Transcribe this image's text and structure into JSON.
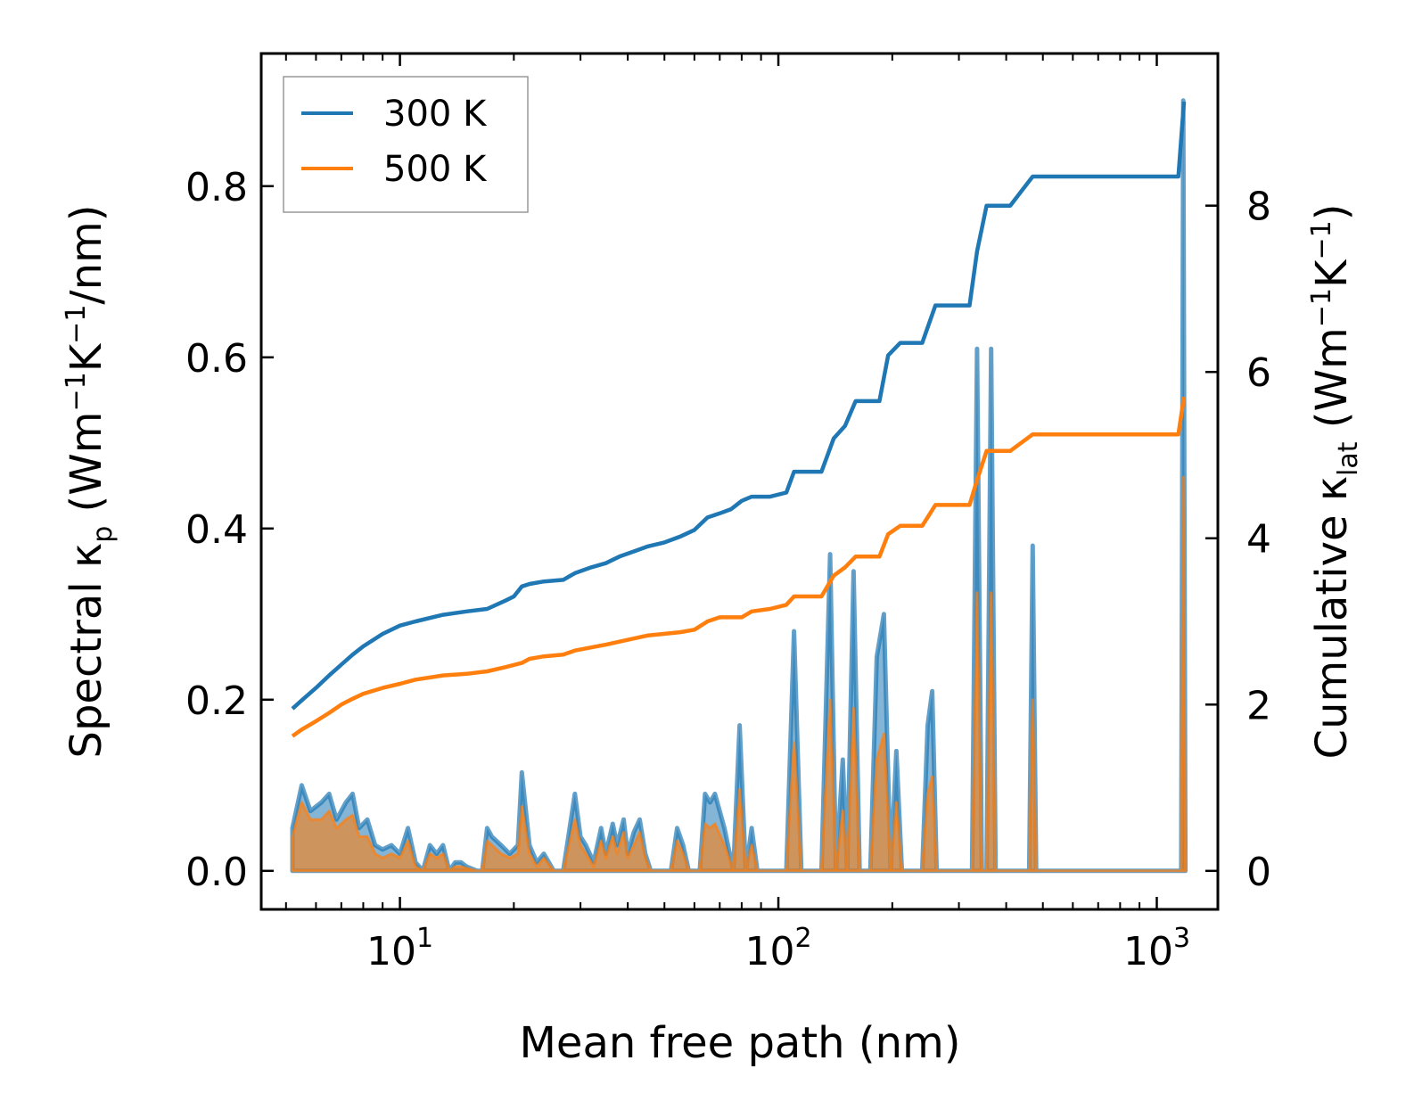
{
  "chart_data": {
    "type": "line",
    "xscale": "log",
    "xlim": [
      4.3,
      1450
    ],
    "ylim_left": [
      -0.045,
      0.955
    ],
    "ylim_right": [
      -0.463,
      9.83
    ],
    "xlabel": "Mean free path (nm)",
    "ylabel_left": {
      "main": "Spectral κ",
      "sub": "p",
      "unit_pre": " (Wm",
      "sup1": "−1",
      "mid": "K",
      "sup2": "−1",
      "unit_post": "/nm)"
    },
    "ylabel_right": {
      "main": "Cumulative κ",
      "sub": "lat",
      "unit_pre": " (Wm",
      "sup1": "−1",
      "mid": "K",
      "sup2": "−1",
      "unit_post": ")"
    },
    "x_major_ticks": [
      10,
      100,
      1000
    ],
    "x_tick_labels": [
      {
        "base": "10",
        "exp": "1"
      },
      {
        "base": "10",
        "exp": "2"
      },
      {
        "base": "10",
        "exp": "3"
      }
    ],
    "y_left_ticks": [
      "0.0",
      "0.2",
      "0.4",
      "0.6",
      "0.8"
    ],
    "y_right_ticks": [
      "0",
      "2",
      "4",
      "6",
      "8"
    ],
    "legend": {
      "position": "top-left",
      "entries": [
        {
          "label": "300 K",
          "color": "#1f77b4"
        },
        {
          "label": "500 K",
          "color": "#ff7f0e"
        }
      ]
    },
    "series": [
      {
        "name": "300 K",
        "color": "#1f77b4",
        "cumulative": [
          [
            5.2,
            1.95
          ],
          [
            5.5,
            2.05
          ],
          [
            6.0,
            2.2
          ],
          [
            6.5,
            2.35
          ],
          [
            7.0,
            2.48
          ],
          [
            7.5,
            2.6
          ],
          [
            8.0,
            2.7
          ],
          [
            9.0,
            2.85
          ],
          [
            10.0,
            2.95
          ],
          [
            11.0,
            3.0
          ],
          [
            13.0,
            3.08
          ],
          [
            15.0,
            3.12
          ],
          [
            17.0,
            3.15
          ],
          [
            19.0,
            3.25
          ],
          [
            20.0,
            3.3
          ],
          [
            21.0,
            3.42
          ],
          [
            22.0,
            3.45
          ],
          [
            24.0,
            3.48
          ],
          [
            27.0,
            3.5
          ],
          [
            29.0,
            3.58
          ],
          [
            32.0,
            3.65
          ],
          [
            35.0,
            3.7
          ],
          [
            38.0,
            3.78
          ],
          [
            42.0,
            3.85
          ],
          [
            45.0,
            3.9
          ],
          [
            50.0,
            3.95
          ],
          [
            55.0,
            4.02
          ],
          [
            60.0,
            4.1
          ],
          [
            65.0,
            4.25
          ],
          [
            70.0,
            4.3
          ],
          [
            75.0,
            4.35
          ],
          [
            80.0,
            4.45
          ],
          [
            85.0,
            4.5
          ],
          [
            95.0,
            4.5
          ],
          [
            105.0,
            4.55
          ],
          [
            110.0,
            4.8
          ],
          [
            130.0,
            4.8
          ],
          [
            140.0,
            5.2
          ],
          [
            150.0,
            5.35
          ],
          [
            160.0,
            5.65
          ],
          [
            185.0,
            5.65
          ],
          [
            195.0,
            6.2
          ],
          [
            210.0,
            6.35
          ],
          [
            240.0,
            6.35
          ],
          [
            260.0,
            6.8
          ],
          [
            320.0,
            6.8
          ],
          [
            335.0,
            7.45
          ],
          [
            355.0,
            8.0
          ],
          [
            410.0,
            8.0
          ],
          [
            470.0,
            8.35
          ],
          [
            1140.0,
            8.35
          ],
          [
            1180.0,
            9.25
          ]
        ],
        "spectral": [
          [
            5.2,
            0.05
          ],
          [
            5.5,
            0.1
          ],
          [
            5.8,
            0.07
          ],
          [
            6.2,
            0.08
          ],
          [
            6.5,
            0.09
          ],
          [
            6.8,
            0.06
          ],
          [
            7.2,
            0.08
          ],
          [
            7.5,
            0.09
          ],
          [
            7.8,
            0.05
          ],
          [
            8.2,
            0.06
          ],
          [
            8.6,
            0.03
          ],
          [
            9.0,
            0.025
          ],
          [
            9.5,
            0.03
          ],
          [
            10.0,
            0.02
          ],
          [
            10.5,
            0.05
          ],
          [
            11.0,
            0.01
          ],
          [
            11.5,
            0.0
          ],
          [
            12.0,
            0.03
          ],
          [
            12.5,
            0.02
          ],
          [
            13.0,
            0.03
          ],
          [
            13.5,
            0.0
          ],
          [
            14.0,
            0.01
          ],
          [
            14.5,
            0.01
          ],
          [
            15.0,
            0.005
          ],
          [
            16.0,
            0.0
          ],
          [
            16.5,
            0.0
          ],
          [
            17.0,
            0.05
          ],
          [
            17.5,
            0.04
          ],
          [
            18.5,
            0.03
          ],
          [
            19.5,
            0.02
          ],
          [
            20.5,
            0.03
          ],
          [
            21.0,
            0.115
          ],
          [
            22.0,
            0.03
          ],
          [
            23.0,
            0.01
          ],
          [
            24.0,
            0.02
          ],
          [
            25.5,
            0.0
          ],
          [
            27.0,
            0.0
          ],
          [
            29.0,
            0.09
          ],
          [
            30.0,
            0.04
          ],
          [
            31.0,
            0.03
          ],
          [
            32.5,
            0.01
          ],
          [
            34.0,
            0.05
          ],
          [
            35.0,
            0.02
          ],
          [
            36.5,
            0.055
          ],
          [
            37.5,
            0.03
          ],
          [
            39.0,
            0.06
          ],
          [
            40.0,
            0.02
          ],
          [
            41.5,
            0.045
          ],
          [
            43.0,
            0.06
          ],
          [
            44.5,
            0.02
          ],
          [
            46.0,
            0.0
          ],
          [
            48.0,
            0.0
          ],
          [
            50.0,
            0.0
          ],
          [
            52.0,
            0.0
          ],
          [
            54.0,
            0.05
          ],
          [
            56.0,
            0.03
          ],
          [
            58.0,
            0.0
          ],
          [
            62.0,
            0.0
          ],
          [
            64.0,
            0.09
          ],
          [
            66.0,
            0.08
          ],
          [
            68.0,
            0.09
          ],
          [
            72.0,
            0.05
          ],
          [
            76.0,
            0.0
          ],
          [
            79.0,
            0.17
          ],
          [
            82.0,
            0.0
          ],
          [
            85.0,
            0.05
          ],
          [
            88.0,
            0.0
          ],
          [
            105.0,
            0.0
          ],
          [
            110.0,
            0.28
          ],
          [
            115.0,
            0.0
          ],
          [
            130.0,
            0.0
          ],
          [
            137.0,
            0.37
          ],
          [
            142.0,
            0.0
          ],
          [
            148.0,
            0.13
          ],
          [
            152.0,
            0.0
          ],
          [
            158.0,
            0.35
          ],
          [
            164.0,
            0.0
          ],
          [
            175.0,
            0.0
          ],
          [
            182.0,
            0.25
          ],
          [
            190.0,
            0.3
          ],
          [
            198.0,
            0.0
          ],
          [
            205.0,
            0.14
          ],
          [
            212.0,
            0.0
          ],
          [
            240.0,
            0.0
          ],
          [
            248.0,
            0.17
          ],
          [
            255.0,
            0.21
          ],
          [
            262.0,
            0.0
          ],
          [
            325.0,
            0.0
          ],
          [
            335.0,
            0.61
          ],
          [
            345.0,
            0.0
          ],
          [
            355.0,
            0.0
          ],
          [
            365.0,
            0.61
          ],
          [
            375.0,
            0.0
          ],
          [
            460.0,
            0.0
          ],
          [
            470.0,
            0.38
          ],
          [
            480.0,
            0.0
          ],
          [
            1140.0,
            0.0
          ],
          [
            1160.0,
            0.0
          ],
          [
            1175.0,
            0.9
          ],
          [
            1190.0,
            0.0
          ]
        ]
      },
      {
        "name": "500 K",
        "color": "#ff7f0e",
        "cumulative": [
          [
            5.2,
            1.62
          ],
          [
            5.5,
            1.7
          ],
          [
            6.0,
            1.8
          ],
          [
            6.5,
            1.9
          ],
          [
            7.0,
            2.0
          ],
          [
            7.5,
            2.07
          ],
          [
            8.0,
            2.13
          ],
          [
            9.0,
            2.2
          ],
          [
            10.0,
            2.25
          ],
          [
            11.0,
            2.3
          ],
          [
            13.0,
            2.35
          ],
          [
            15.0,
            2.37
          ],
          [
            17.0,
            2.4
          ],
          [
            19.0,
            2.45
          ],
          [
            21.0,
            2.5
          ],
          [
            22.0,
            2.55
          ],
          [
            24.0,
            2.58
          ],
          [
            27.0,
            2.6
          ],
          [
            29.0,
            2.65
          ],
          [
            35.0,
            2.72
          ],
          [
            42.0,
            2.8
          ],
          [
            45.0,
            2.83
          ],
          [
            55.0,
            2.87
          ],
          [
            60.0,
            2.9
          ],
          [
            65.0,
            3.0
          ],
          [
            70.0,
            3.05
          ],
          [
            80.0,
            3.05
          ],
          [
            85.0,
            3.12
          ],
          [
            95.0,
            3.15
          ],
          [
            105.0,
            3.2
          ],
          [
            110.0,
            3.3
          ],
          [
            130.0,
            3.3
          ],
          [
            140.0,
            3.55
          ],
          [
            150.0,
            3.65
          ],
          [
            160.0,
            3.78
          ],
          [
            185.0,
            3.78
          ],
          [
            195.0,
            4.05
          ],
          [
            210.0,
            4.15
          ],
          [
            240.0,
            4.15
          ],
          [
            260.0,
            4.4
          ],
          [
            320.0,
            4.4
          ],
          [
            335.0,
            4.7
          ],
          [
            355.0,
            5.05
          ],
          [
            410.0,
            5.05
          ],
          [
            470.0,
            5.25
          ],
          [
            1140.0,
            5.25
          ],
          [
            1180.0,
            5.7
          ]
        ],
        "spectral": [
          [
            5.2,
            0.04
          ],
          [
            5.5,
            0.08
          ],
          [
            5.8,
            0.06
          ],
          [
            6.2,
            0.06
          ],
          [
            6.5,
            0.07
          ],
          [
            6.8,
            0.05
          ],
          [
            7.2,
            0.06
          ],
          [
            7.5,
            0.065
          ],
          [
            7.8,
            0.04
          ],
          [
            8.2,
            0.04
          ],
          [
            8.6,
            0.02
          ],
          [
            9.0,
            0.015
          ],
          [
            9.5,
            0.02
          ],
          [
            10.0,
            0.015
          ],
          [
            10.5,
            0.035
          ],
          [
            11.0,
            0.005
          ],
          [
            11.5,
            0.0
          ],
          [
            12.0,
            0.02
          ],
          [
            12.5,
            0.015
          ],
          [
            13.0,
            0.02
          ],
          [
            13.5,
            0.0
          ],
          [
            14.0,
            0.005
          ],
          [
            14.5,
            0.005
          ],
          [
            15.0,
            0.003
          ],
          [
            16.0,
            0.0
          ],
          [
            16.5,
            0.0
          ],
          [
            17.0,
            0.035
          ],
          [
            17.5,
            0.03
          ],
          [
            18.5,
            0.02
          ],
          [
            19.5,
            0.015
          ],
          [
            20.5,
            0.02
          ],
          [
            21.0,
            0.075
          ],
          [
            22.0,
            0.02
          ],
          [
            23.0,
            0.005
          ],
          [
            24.0,
            0.015
          ],
          [
            25.5,
            0.0
          ],
          [
            27.0,
            0.0
          ],
          [
            29.0,
            0.06
          ],
          [
            30.0,
            0.03
          ],
          [
            31.0,
            0.02
          ],
          [
            32.5,
            0.005
          ],
          [
            34.0,
            0.035
          ],
          [
            35.0,
            0.015
          ],
          [
            36.5,
            0.04
          ],
          [
            37.5,
            0.02
          ],
          [
            39.0,
            0.045
          ],
          [
            40.0,
            0.015
          ],
          [
            41.5,
            0.03
          ],
          [
            43.0,
            0.045
          ],
          [
            44.5,
            0.015
          ],
          [
            46.0,
            0.0
          ],
          [
            48.0,
            0.0
          ],
          [
            50.0,
            0.0
          ],
          [
            52.0,
            0.0
          ],
          [
            54.0,
            0.035
          ],
          [
            56.0,
            0.02
          ],
          [
            58.0,
            0.0
          ],
          [
            62.0,
            0.0
          ],
          [
            64.0,
            0.055
          ],
          [
            66.0,
            0.05
          ],
          [
            68.0,
            0.055
          ],
          [
            72.0,
            0.03
          ],
          [
            76.0,
            0.0
          ],
          [
            79.0,
            0.095
          ],
          [
            82.0,
            0.0
          ],
          [
            85.0,
            0.03
          ],
          [
            88.0,
            0.0
          ],
          [
            105.0,
            0.0
          ],
          [
            110.0,
            0.15
          ],
          [
            115.0,
            0.0
          ],
          [
            130.0,
            0.0
          ],
          [
            137.0,
            0.2
          ],
          [
            142.0,
            0.0
          ],
          [
            148.0,
            0.07
          ],
          [
            152.0,
            0.0
          ],
          [
            158.0,
            0.19
          ],
          [
            164.0,
            0.0
          ],
          [
            175.0,
            0.0
          ],
          [
            182.0,
            0.13
          ],
          [
            190.0,
            0.16
          ],
          [
            198.0,
            0.0
          ],
          [
            205.0,
            0.08
          ],
          [
            212.0,
            0.0
          ],
          [
            240.0,
            0.0
          ],
          [
            248.0,
            0.09
          ],
          [
            255.0,
            0.11
          ],
          [
            262.0,
            0.0
          ],
          [
            325.0,
            0.0
          ],
          [
            335.0,
            0.325
          ],
          [
            345.0,
            0.0
          ],
          [
            355.0,
            0.0
          ],
          [
            365.0,
            0.325
          ],
          [
            375.0,
            0.0
          ],
          [
            460.0,
            0.0
          ],
          [
            470.0,
            0.2
          ],
          [
            480.0,
            0.0
          ],
          [
            1140.0,
            0.0
          ],
          [
            1160.0,
            0.0
          ],
          [
            1175.0,
            0.46
          ],
          [
            1190.0,
            0.0
          ]
        ]
      }
    ]
  }
}
